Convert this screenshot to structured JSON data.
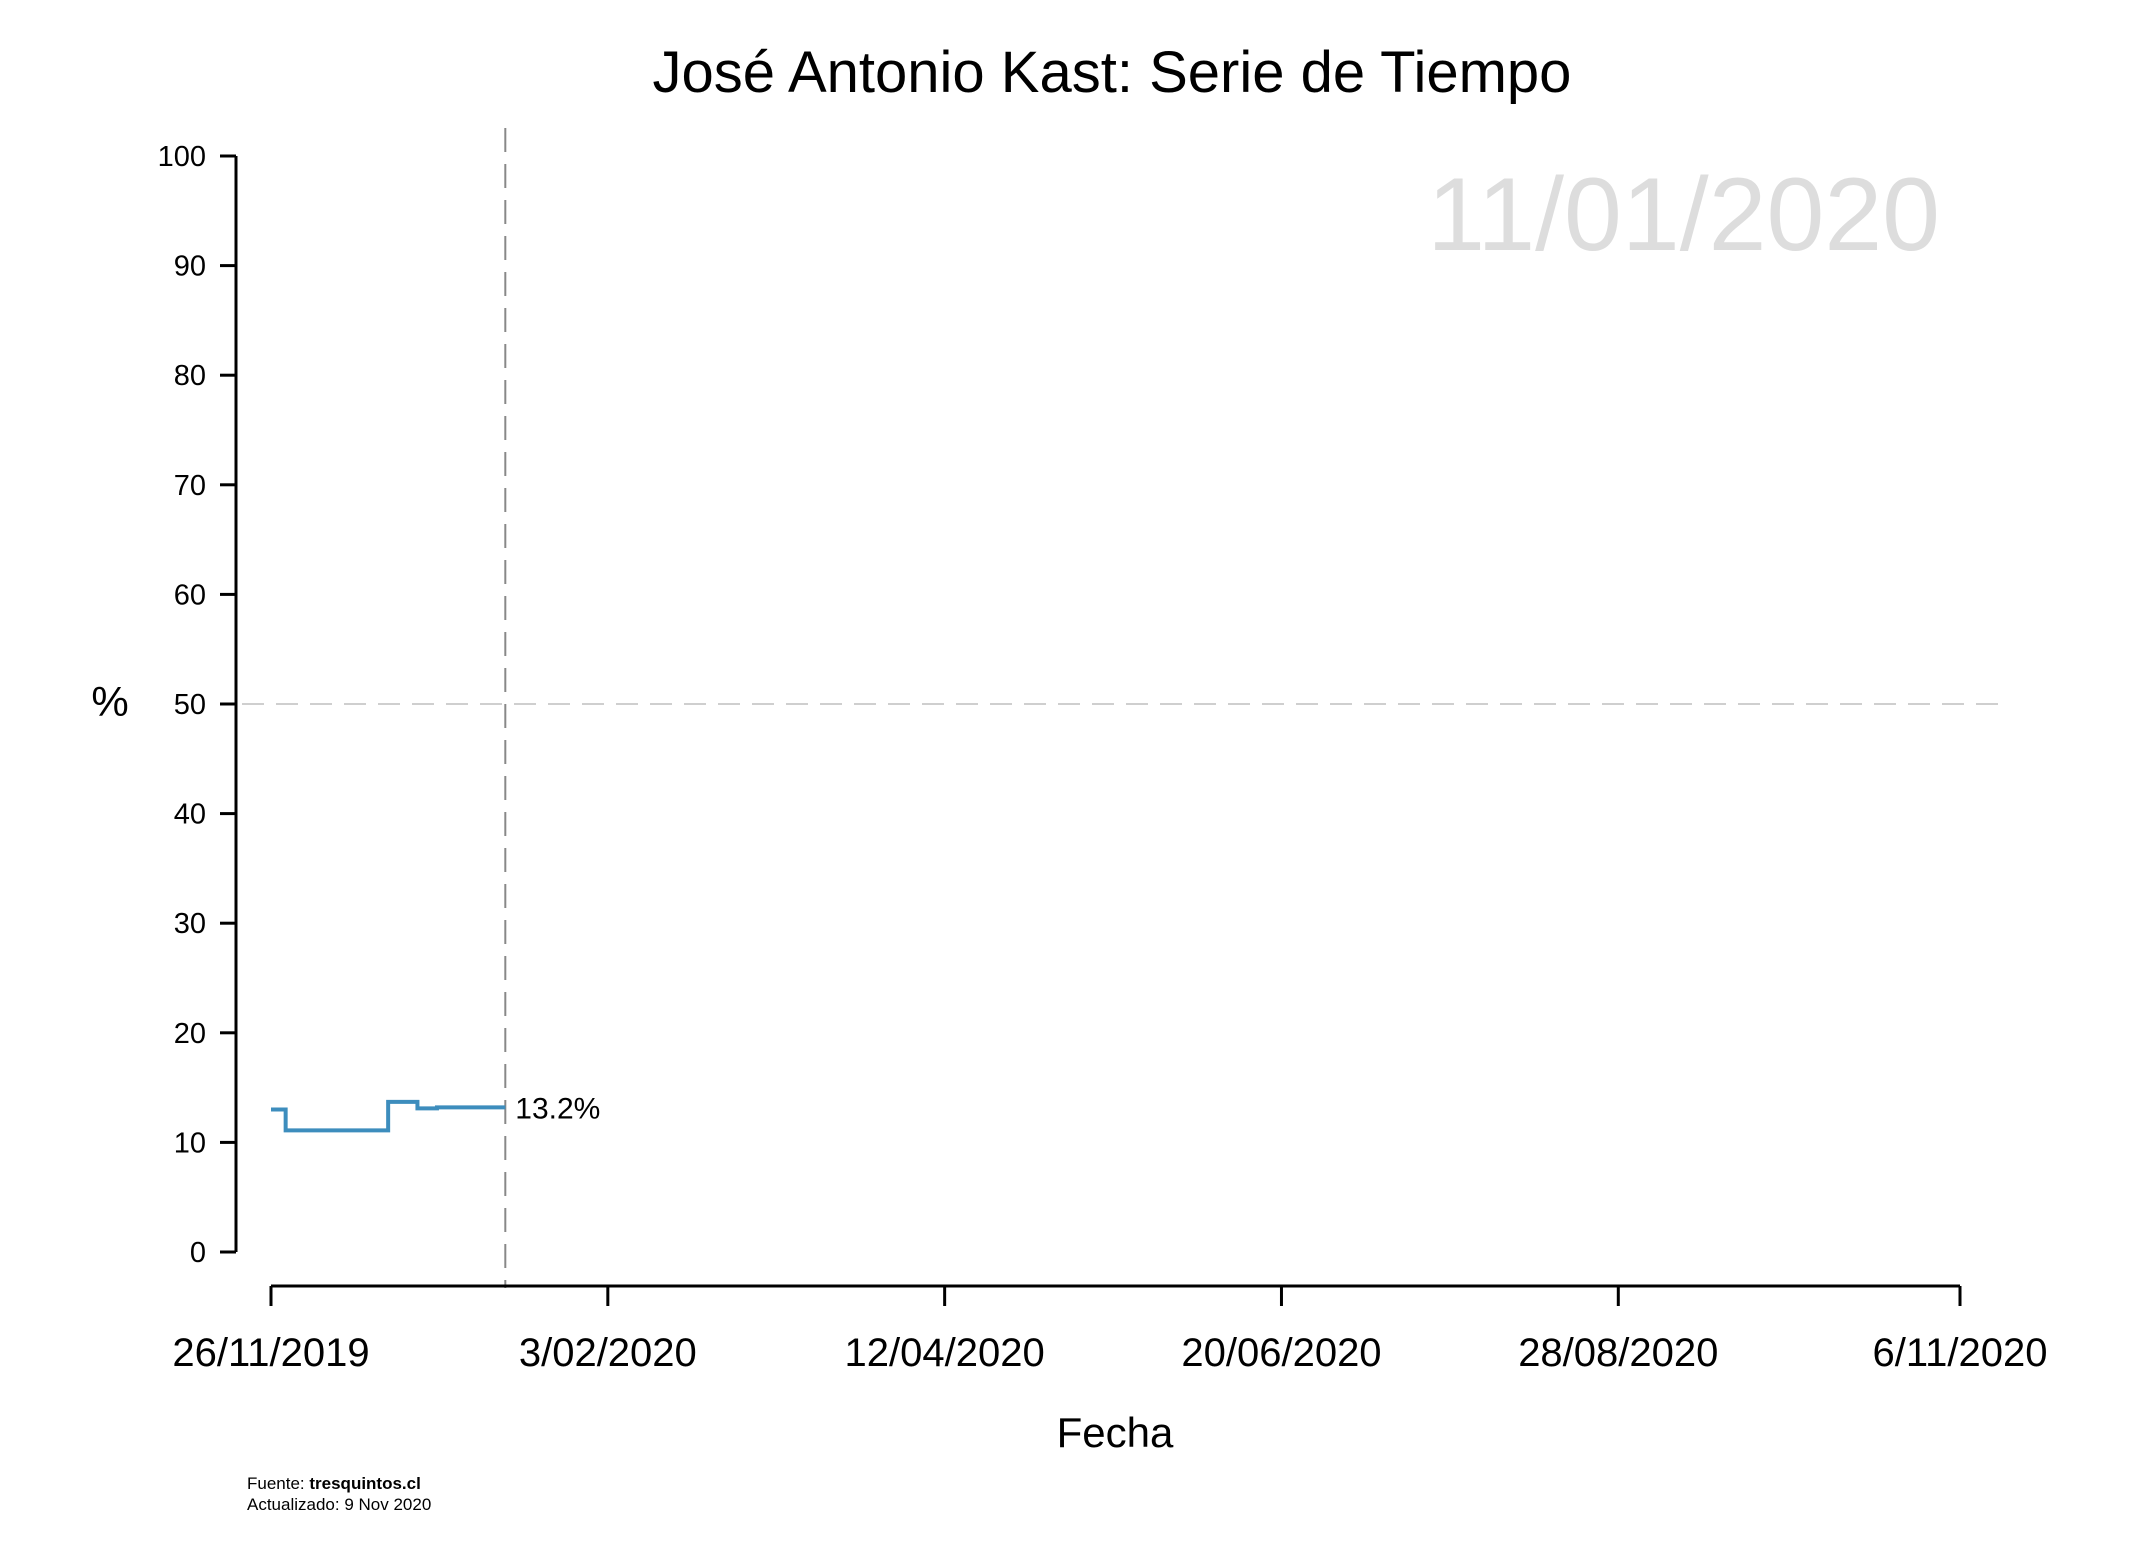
{
  "chart_data": {
    "type": "line",
    "title": "José Antonio Kast: Serie de Tiempo",
    "current_date_label": "11/01/2020",
    "xlabel": "Fecha",
    "ylabel": "%",
    "ylim": [
      0,
      100
    ],
    "yticks": [
      0,
      10,
      20,
      30,
      40,
      50,
      60,
      70,
      80,
      90,
      100
    ],
    "xlim": [
      "2019-11-26",
      "2020-11-06"
    ],
    "xticks": [
      {
        "date": "2019-11-26",
        "label": "26/11/2019"
      },
      {
        "date": "2020-02-03",
        "label": "3/02/2020"
      },
      {
        "date": "2020-04-12",
        "label": "12/04/2020"
      },
      {
        "date": "2020-06-20",
        "label": "20/06/2020"
      },
      {
        "date": "2020-08-28",
        "label": "28/08/2020"
      },
      {
        "date": "2020-11-06",
        "label": "6/11/2020"
      }
    ],
    "reference_hline": 50,
    "current_vline_date": "2020-01-13",
    "series": [
      {
        "step": true,
        "color": "#3d8dbd",
        "points": [
          {
            "x": "2019-11-26",
            "y": 13.0
          },
          {
            "x": "2019-11-29",
            "y": 11.1
          },
          {
            "x": "2019-12-20",
            "y": 13.7
          },
          {
            "x": "2019-12-26",
            "y": 13.1
          },
          {
            "x": "2019-12-30",
            "y": 13.2
          },
          {
            "x": "2020-01-13",
            "y": 13.2
          }
        ],
        "end_label": "13.2%"
      }
    ]
  },
  "footer": {
    "source_prefix": "Fuente: ",
    "source_name": "tresquintos.cl",
    "updated": "Actualizado: 9 Nov 2020"
  }
}
